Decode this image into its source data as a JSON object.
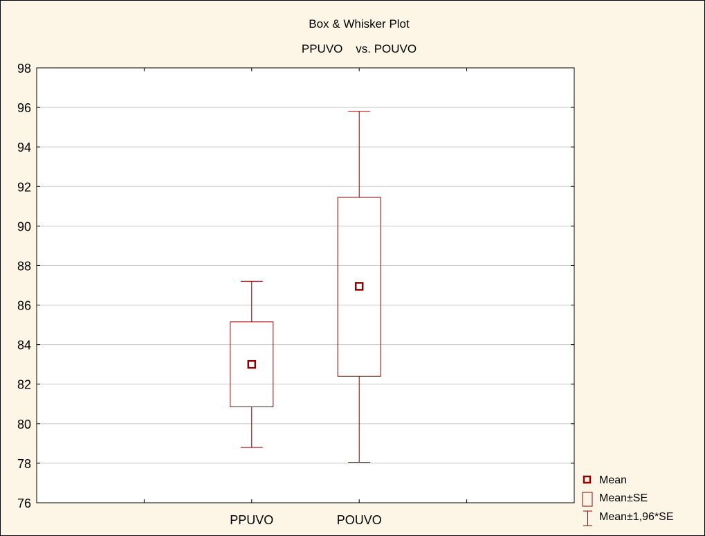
{
  "chart_data": {
    "type": "box",
    "title": "Box & Whisker Plot",
    "subtitle": "PPUVO    vs. POUVO",
    "categories": [
      "PPUVO",
      "POUVO"
    ],
    "series": [
      {
        "name": "PPUVO",
        "mean": 83.0,
        "mean_minus_se": 80.85,
        "mean_plus_se": 85.15,
        "mean_minus_196se": 78.8,
        "mean_plus_196se": 87.2
      },
      {
        "name": "POUVO",
        "mean": 86.95,
        "mean_minus_se": 82.4,
        "mean_plus_se": 91.45,
        "mean_minus_196se": 78.05,
        "mean_plus_196se": 95.8
      }
    ],
    "ylim": [
      76,
      98
    ],
    "yticks": [
      "76",
      "78",
      "80",
      "82",
      "84",
      "86",
      "88",
      "90",
      "92",
      "94",
      "96",
      "98"
    ],
    "grid": true,
    "legend_position": "bottom-right",
    "legend": {
      "mean": "Mean",
      "box": "Mean±SE",
      "whisker": "Mean±1,96*SE"
    },
    "colors": {
      "series": "#8b0000",
      "grid": "#c8c8c8",
      "plot_background": "#ffffff",
      "page_background": "#fdf6e6"
    }
  }
}
